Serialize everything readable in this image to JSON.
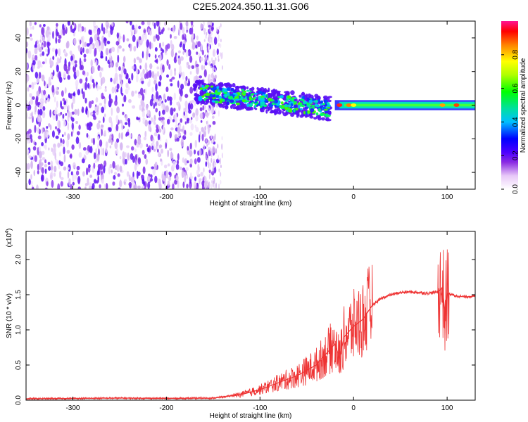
{
  "title": "C2E5.2024.350.11.31.G06",
  "chart_data": [
    {
      "type": "heatmap",
      "xlabel": "Height of straight line (km)",
      "ylabel": "Frequency (Hz)",
      "xlim": [
        -350,
        130
      ],
      "ylim": [
        -50,
        50
      ],
      "xticks": [
        -300,
        -200,
        -100,
        0,
        100
      ],
      "yticks": [
        -40,
        -20,
        0,
        20,
        40
      ],
      "colorbar": {
        "label": "Normalized spectral amplitude",
        "range": [
          0,
          1
        ],
        "ticks": [
          0.0,
          0.2,
          0.4,
          0.6,
          0.8
        ],
        "tick_labels": [
          "0.0",
          "0.2",
          "0.4",
          "0.6",
          "0.8"
        ],
        "colormap": [
          "#ffffff",
          "#e8c8f8",
          "#8a2be2",
          "#4b00ff",
          "#0000ff",
          "#00bfff",
          "#00e0a0",
          "#00ff00",
          "#b0ff00",
          "#ffff00",
          "#ff8000",
          "#ff0000",
          "#ff1493"
        ]
      },
      "regions": [
        {
          "description_x": [
            -350,
            -145
          ],
          "frequency_band": [
            -50,
            50
          ],
          "amplitude": "0.05-0.2 (noise)"
        },
        {
          "description_x": [
            -170,
            -25
          ],
          "frequency_band": [
            -10,
            12
          ],
          "amplitude": "0.3-0.6"
        },
        {
          "description_x": [
            -20,
            130
          ],
          "frequency_band": [
            -2,
            2
          ],
          "amplitude": "0.4-0.9"
        }
      ]
    },
    {
      "type": "line",
      "xlabel": "Height of straight line (km)",
      "ylabel": "SNR (10 * v/v)",
      "multiplier_label": "(x10",
      "multiplier_exp": "4",
      "color": "#ee3333",
      "xlim": [
        -350,
        130
      ],
      "ylim": [
        0,
        24000
      ],
      "xticks": [
        -300,
        -200,
        -100,
        0,
        100
      ],
      "yticks": [
        0,
        5000,
        10000,
        15000,
        20000
      ],
      "ytick_labels": [
        "0.0",
        "0.5",
        "1.0",
        "1.5",
        "2.0"
      ],
      "x": [
        -350,
        -300,
        -250,
        -200,
        -150,
        -120,
        -100,
        -80,
        -60,
        -40,
        -30,
        -20,
        -15,
        -10,
        0,
        10,
        20,
        30,
        40,
        50,
        60,
        70,
        80,
        90,
        95,
        98,
        100,
        110,
        120,
        130
      ],
      "y": [
        200,
        250,
        300,
        250,
        300,
        800,
        1500,
        2500,
        3500,
        5000,
        6500,
        8000,
        6000,
        9000,
        10500,
        11500,
        13500,
        14500,
        15000,
        15300,
        15400,
        15300,
        15200,
        15400,
        16000,
        12000,
        15200,
        14800,
        14700,
        14800
      ]
    }
  ]
}
